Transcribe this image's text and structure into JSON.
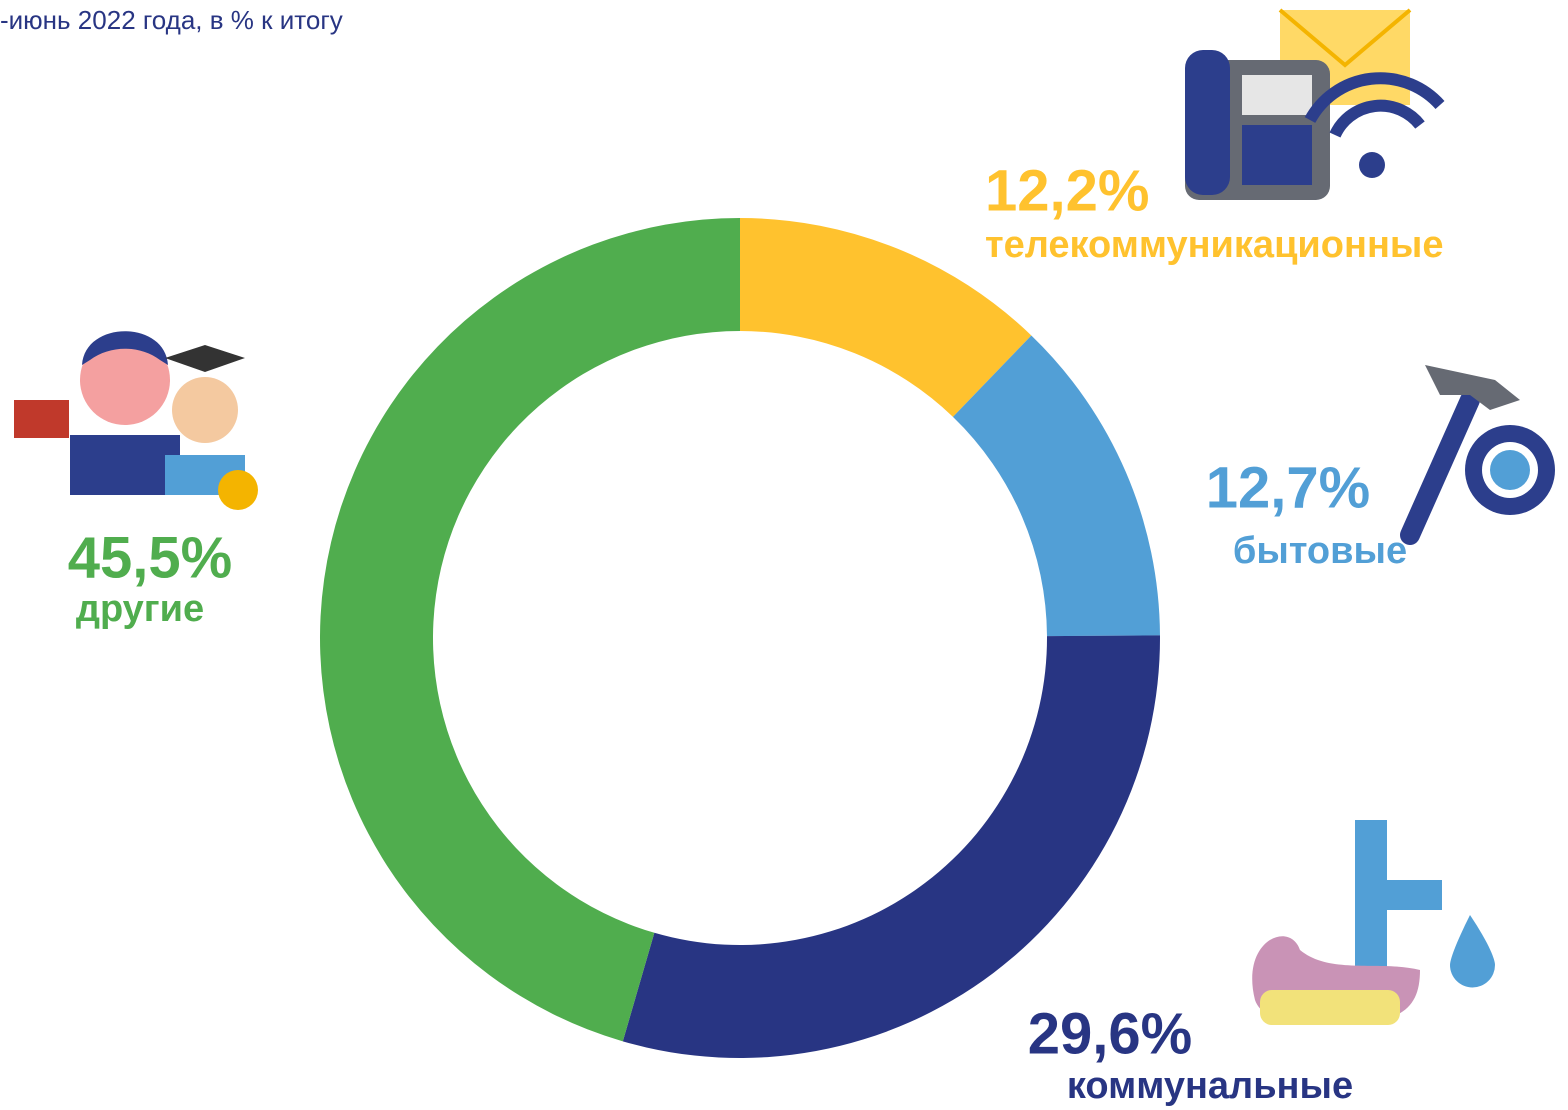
{
  "chart_data": {
    "type": "donut",
    "title": "-июнь 2022 года, в % к итогу",
    "categories": [
      "телекоммуникационные",
      "бытовые",
      "коммунальные",
      "другие"
    ],
    "values": [
      12.2,
      12.7,
      29.6,
      45.5
    ],
    "value_labels": [
      "12,2%",
      "12,7%",
      "29,6%",
      "45,5%"
    ],
    "colors": [
      "#FFC22E",
      "#529FD6",
      "#283583",
      "#50AD4E"
    ]
  }
}
